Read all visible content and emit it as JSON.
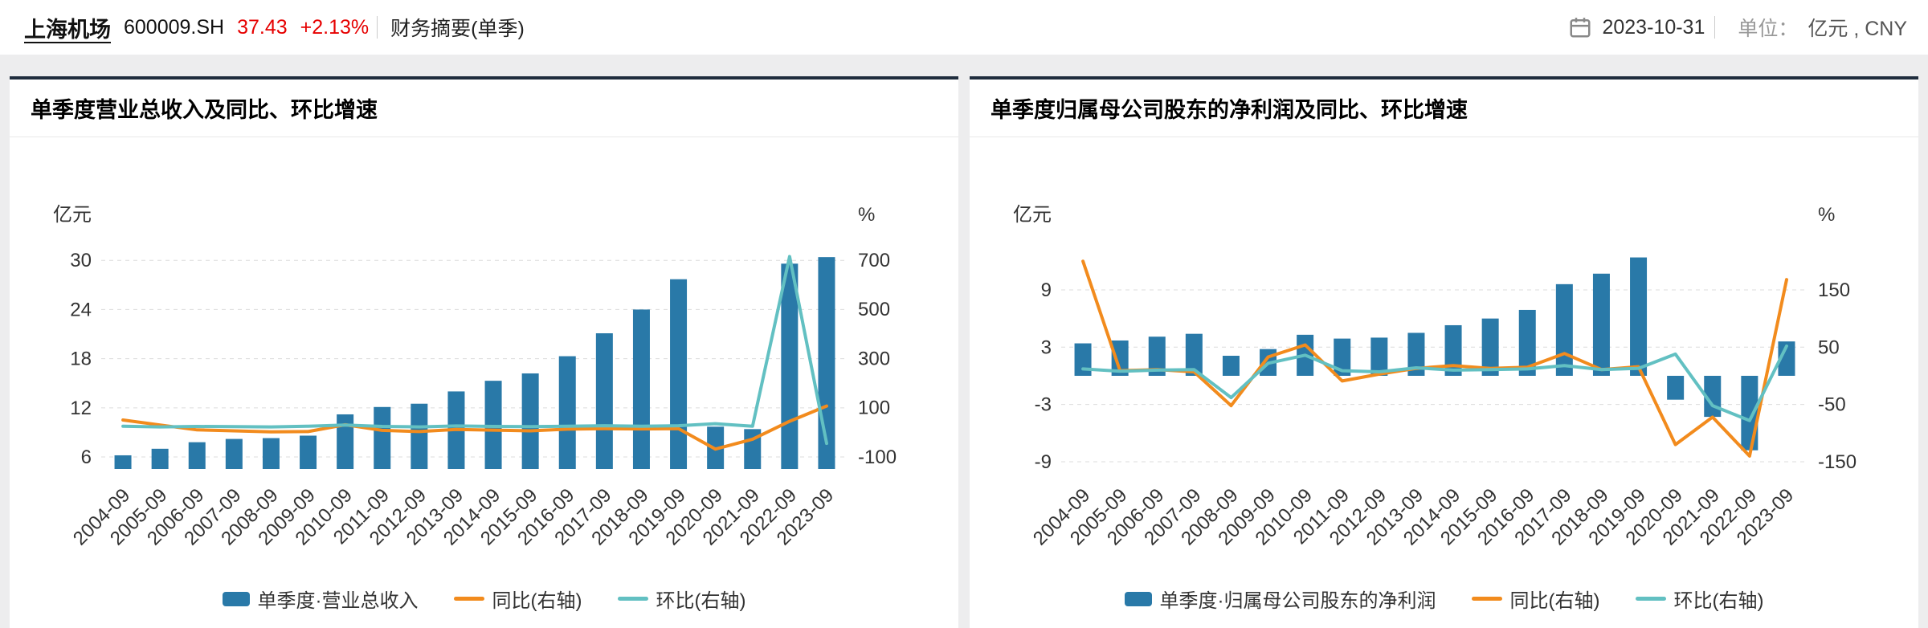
{
  "header": {
    "stock_name": "上海机场",
    "stock_code": "600009.SH",
    "price": "37.43",
    "change": "+2.13%",
    "report_type": "财务摘要(单季)",
    "date": "2023-10-31",
    "unit_label": "单位：",
    "unit_value": "亿元 , CNY",
    "up_color": "#e60000"
  },
  "icons": {
    "calendar": "calendar-icon"
  },
  "chart_data": [
    {
      "type": "bar",
      "subtype": "bar-line-combo",
      "title": "单季度营业总收入及同比、环比增速",
      "unit_left": "亿元",
      "unit_right": "%",
      "legend_position": "bottom",
      "grid": "dashed-horizontal",
      "categories": [
        "2004-09",
        "2005-09",
        "2006-09",
        "2007-09",
        "2008-09",
        "2009-09",
        "2010-09",
        "2011-09",
        "2012-09",
        "2013-09",
        "2014-09",
        "2015-09",
        "2016-09",
        "2017-09",
        "2018-09",
        "2019-09",
        "2020-09",
        "2021-09",
        "2022-09",
        "2023-09"
      ],
      "left_ticks": [
        6,
        12,
        18,
        24,
        30
      ],
      "right_ticks": [
        -100,
        100,
        300,
        500,
        700
      ],
      "left_range": [
        4.53,
        31.2
      ],
      "right_range": [
        -149,
        739
      ],
      "series": [
        {
          "name": "单季度·营业总收入",
          "type": "bar",
          "axis": "left",
          "color": "#2979a8",
          "values": [
            6.2,
            7.0,
            7.8,
            8.2,
            8.3,
            8.6,
            11.2,
            12.1,
            12.5,
            14.0,
            15.3,
            16.2,
            18.3,
            21.1,
            24.0,
            27.7,
            9.7,
            9.4,
            29.6,
            30.4
          ]
        },
        {
          "name": "同比(右轴)",
          "type": "line",
          "axis": "right",
          "color": "#f28b1d",
          "values": [
            50,
            30,
            10,
            6,
            2,
            3,
            31,
            8,
            3,
            12,
            9,
            6,
            13,
            15,
            14,
            15,
            -68,
            -28,
            45,
            107
          ]
        },
        {
          "name": "环比(右轴)",
          "type": "line",
          "axis": "right",
          "color": "#62c0c2",
          "values": [
            25,
            22,
            24,
            23,
            22,
            25,
            30,
            24,
            22,
            26,
            24,
            23,
            25,
            27,
            25,
            27,
            35,
            25,
            715,
            -45
          ]
        }
      ]
    },
    {
      "type": "bar",
      "subtype": "bar-line-combo",
      "title": "单季度归属母公司股东的净利润及同比、环比增速",
      "unit_left": "亿元",
      "unit_right": "%",
      "legend_position": "bottom",
      "grid": "dashed-horizontal",
      "categories": [
        "2004-09",
        "2005-09",
        "2006-09",
        "2007-09",
        "2008-09",
        "2009-09",
        "2010-09",
        "2011-09",
        "2012-09",
        "2013-09",
        "2014-09",
        "2015-09",
        "2016-09",
        "2017-09",
        "2018-09",
        "2019-09",
        "2020-09",
        "2021-09",
        "2022-09",
        "2023-09"
      ],
      "left_ticks": [
        -9,
        -3,
        3,
        9
      ],
      "right_ticks": [
        -150,
        -50,
        50,
        150
      ],
      "left_range": [
        -9.76,
        13.12
      ],
      "right_range": [
        -162.6,
        218.7
      ],
      "series": [
        {
          "name": "单季度·归属母公司股东的净利润",
          "type": "bar",
          "axis": "left",
          "color": "#2979a8",
          "values": [
            3.4,
            3.7,
            4.1,
            4.4,
            2.1,
            2.8,
            4.3,
            3.9,
            4.0,
            4.5,
            5.3,
            6.0,
            6.9,
            9.6,
            10.7,
            12.4,
            -2.5,
            -4.3,
            -7.8,
            3.6
          ]
        },
        {
          "name": "同比(右轴)",
          "type": "line",
          "axis": "right",
          "color": "#f28b1d",
          "values": [
            200,
            9,
            11,
            7,
            -52,
            33,
            54,
            -9,
            3,
            13,
            18,
            13,
            15,
            39,
            11,
            16,
            -120,
            -72,
            -140,
            168
          ]
        },
        {
          "name": "环比(右轴)",
          "type": "line",
          "axis": "right",
          "color": "#62c0c2",
          "values": [
            12,
            8,
            10,
            11,
            -38,
            22,
            36,
            9,
            7,
            14,
            10,
            11,
            12,
            18,
            11,
            13,
            38,
            -52,
            -78,
            52
          ]
        }
      ]
    }
  ]
}
